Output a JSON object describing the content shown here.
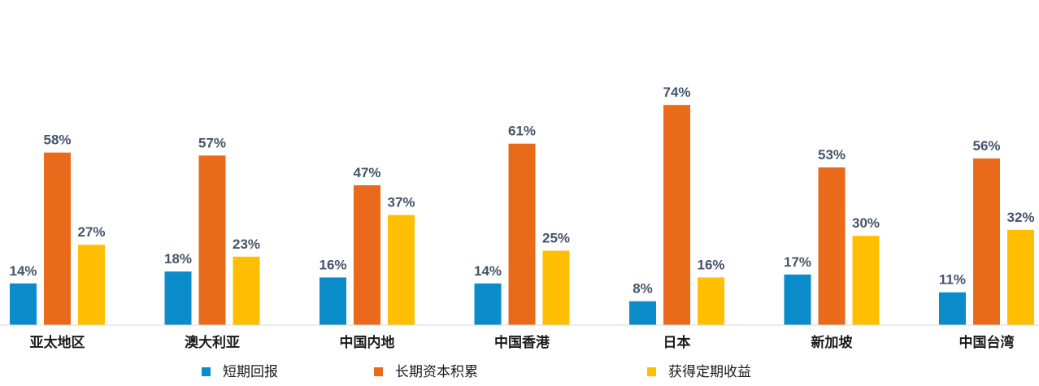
{
  "chart_data": {
    "type": "bar",
    "categories": [
      "亚太地区",
      "澳大利亚",
      "中国内地",
      "中国香港",
      "日本",
      "新加坡",
      "中国台湾"
    ],
    "series": [
      {
        "name": "短期回报",
        "values": [
          14,
          18,
          16,
          14,
          8,
          17,
          11
        ],
        "color": "#0a8bca"
      },
      {
        "name": "长期资本积累",
        "values": [
          58,
          57,
          47,
          61,
          74,
          53,
          56
        ],
        "color": "#e96a1b"
      },
      {
        "name": "获得定期收益",
        "values": [
          27,
          23,
          37,
          25,
          16,
          30,
          32
        ],
        "color": "#ffbf00"
      }
    ],
    "value_suffix": "%",
    "ylim": [
      0,
      74
    ],
    "grid": false,
    "legend_position": "bottom"
  }
}
